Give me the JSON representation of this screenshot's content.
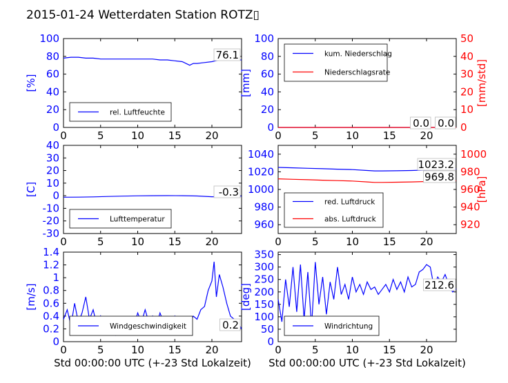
{
  "title": "2015-01-24 Wetterdaten Station ROTZ▯",
  "chart_data": [
    {
      "type": "line",
      "ylabel": "[%]",
      "xlim": [
        0,
        24
      ],
      "ylim": [
        0,
        100
      ],
      "xticks": [
        0,
        5,
        10,
        15,
        20
      ],
      "yticks": [
        0,
        20,
        40,
        60,
        80,
        100
      ],
      "legend": "bottom-left",
      "series": [
        {
          "name": "rel. Luftfeuchte",
          "color": "#0000ff",
          "x": [
            0,
            1,
            2,
            3,
            4,
            5,
            6,
            7,
            8,
            9,
            10,
            11,
            12,
            13,
            14,
            15,
            16,
            16.5,
            17,
            17.5,
            18,
            19,
            20,
            21,
            22,
            23,
            24
          ],
          "y": [
            78,
            79,
            79,
            78,
            78,
            77,
            77,
            77,
            77,
            77,
            77,
            77,
            77,
            76,
            76,
            75,
            74,
            72,
            70,
            72,
            72,
            73,
            74,
            76,
            76,
            76,
            76
          ]
        }
      ],
      "value_label": "76.1"
    },
    {
      "type": "line",
      "ylabel": "[mm]",
      "y2label": "[mm/std]",
      "y2color": "#ff0000",
      "xlim": [
        0,
        24
      ],
      "ylim": [
        0,
        100
      ],
      "y2lim": [
        0,
        50
      ],
      "xticks": [
        0,
        5,
        10,
        15,
        20
      ],
      "yticks": [
        0,
        20,
        40,
        60,
        80,
        100
      ],
      "y2ticks": [
        0,
        10,
        20,
        30,
        40,
        50
      ],
      "legend": "top-left",
      "series": [
        {
          "name": "kum. Niederschlag",
          "color": "#0000ff",
          "x": [
            0,
            24
          ],
          "y": [
            0,
            0
          ]
        },
        {
          "name": "Niederschlagsrate",
          "color": "#ff0000",
          "axis": "y2",
          "x": [
            0,
            24
          ],
          "y": [
            0,
            0
          ]
        }
      ],
      "value_labels": [
        "0.0",
        "0.0"
      ]
    },
    {
      "type": "line",
      "ylabel": "[C]",
      "xlim": [
        0,
        24
      ],
      "ylim": [
        -30,
        40
      ],
      "xticks": [
        0,
        5,
        10,
        15,
        20
      ],
      "yticks": [
        -30,
        -20,
        -10,
        0,
        10,
        20,
        30,
        40
      ],
      "legend": "bottom-left",
      "series": [
        {
          "name": "Lufttemperatur",
          "color": "#0000ff",
          "x": [
            0,
            2,
            4,
            6,
            8,
            10,
            12,
            14,
            16,
            18,
            20,
            22,
            24
          ],
          "y": [
            -1.2,
            -1.1,
            -0.9,
            -0.6,
            -0.3,
            -0.1,
            0,
            0.1,
            0,
            -0.2,
            -0.8,
            -0.5,
            -0.3
          ]
        }
      ],
      "value_label": "-0.3"
    },
    {
      "type": "line",
      "y2label": "[hPa]",
      "y2color": "#ff0000",
      "xlim": [
        0,
        24
      ],
      "ylim": [
        950,
        1050
      ],
      "y2lim": [
        910,
        1010
      ],
      "xticks": [
        0,
        5,
        10,
        15,
        20
      ],
      "yticks": [
        960,
        980,
        1000,
        1020,
        1040
      ],
      "y2ticks": [
        920,
        940,
        960,
        980,
        1000
      ],
      "legend": "bottom-left",
      "series": [
        {
          "name": "red. Luftdruck",
          "color": "#0000ff",
          "x": [
            0,
            2,
            4,
            6,
            8,
            10,
            12,
            13,
            14,
            16,
            18,
            20,
            22,
            24
          ],
          "y": [
            1025,
            1024.5,
            1024,
            1023.5,
            1023,
            1022.5,
            1021.5,
            1021,
            1021,
            1021.2,
            1021.5,
            1022,
            1022.8,
            1023.2
          ]
        },
        {
          "name": "abs. Luftdruck",
          "color": "#ff0000",
          "axis": "y2",
          "x": [
            0,
            2,
            4,
            6,
            8,
            10,
            12,
            13,
            14,
            16,
            18,
            20,
            22,
            24
          ],
          "y": [
            972,
            971.5,
            971,
            970.5,
            970,
            969.5,
            968.5,
            968,
            968,
            968.2,
            968.5,
            969,
            969.5,
            969.8
          ]
        }
      ],
      "value_labels": [
        "1023.2",
        "969.8"
      ]
    },
    {
      "type": "line",
      "ylabel": "[m/s]",
      "xlabel": "Std 00:00:00 UTC (+-23 Std Lokalzeit)",
      "xlim": [
        0,
        24
      ],
      "ylim": [
        0,
        1.4
      ],
      "xticks": [
        0,
        5,
        10,
        15,
        20
      ],
      "yticks": [
        0.0,
        0.2,
        0.4,
        0.6,
        0.8,
        1.0,
        1.2,
        1.4
      ],
      "legend": "bottom-left",
      "series": [
        {
          "name": "Windgeschwindigkeit",
          "color": "#0000ff",
          "x": [
            0,
            0.5,
            1,
            1.5,
            2,
            2.5,
            3,
            3.5,
            4,
            4.5,
            5,
            5.5,
            6,
            6.5,
            7,
            7.5,
            8,
            8.5,
            9,
            9.5,
            10,
            10.5,
            11,
            11.5,
            12,
            12.5,
            13,
            13.5,
            14,
            14.5,
            15,
            15.5,
            16,
            16.5,
            17,
            17.5,
            18,
            18.5,
            19,
            19.5,
            20,
            20.3,
            20.6,
            21,
            21.5,
            22,
            22.5,
            23,
            23.5,
            24
          ],
          "y": [
            0.35,
            0.5,
            0.25,
            0.6,
            0.3,
            0.45,
            0.7,
            0.35,
            0.5,
            0.25,
            0.4,
            0.2,
            0.35,
            0.15,
            0.1,
            0.2,
            0.3,
            0.15,
            0.35,
            0.25,
            0.45,
            0.3,
            0.5,
            0.3,
            0.4,
            0.25,
            0.45,
            0.3,
            0.35,
            0.25,
            0.4,
            0.3,
            0.35,
            0.3,
            0.3,
            0.4,
            0.35,
            0.5,
            0.55,
            0.8,
            0.95,
            1.25,
            0.7,
            1.05,
            0.85,
            0.6,
            0.4,
            0.35,
            0.3,
            0.2
          ]
        }
      ],
      "value_label": "0.2"
    },
    {
      "type": "line",
      "ylabel": "[deg]",
      "xlabel": "Std 00:00:00 UTC (+-23 Std Lokalzeit)",
      "xlim": [
        0,
        24
      ],
      "ylim": [
        0,
        360
      ],
      "xticks": [
        0,
        5,
        10,
        15,
        20
      ],
      "yticks": [
        0,
        50,
        100,
        150,
        200,
        250,
        300,
        350
      ],
      "legend": "bottom-left",
      "series": [
        {
          "name": "Windrichtung",
          "color": "#0000ff",
          "x": [
            0,
            0.5,
            1,
            1.5,
            2,
            2.5,
            3,
            3.5,
            4,
            4.5,
            5,
            5.5,
            6,
            6.5,
            7,
            7.5,
            8,
            8.5,
            9,
            9.5,
            10,
            10.5,
            11,
            11.5,
            12,
            12.5,
            13,
            13.5,
            14,
            14.5,
            15,
            15.5,
            16,
            16.5,
            17,
            17.5,
            18,
            18.5,
            19,
            19.5,
            20,
            20.5,
            21,
            21.5,
            22,
            22.5,
            23,
            23.5,
            24
          ],
          "y": [
            170,
            80,
            250,
            140,
            300,
            120,
            310,
            90,
            280,
            60,
            320,
            150,
            260,
            110,
            240,
            170,
            300,
            190,
            230,
            170,
            260,
            200,
            230,
            190,
            240,
            210,
            220,
            190,
            210,
            230,
            200,
            250,
            210,
            240,
            200,
            260,
            220,
            230,
            280,
            290,
            310,
            300,
            220,
            260,
            240,
            270,
            230,
            200,
            212
          ]
        }
      ],
      "value_label": "212.6"
    }
  ]
}
